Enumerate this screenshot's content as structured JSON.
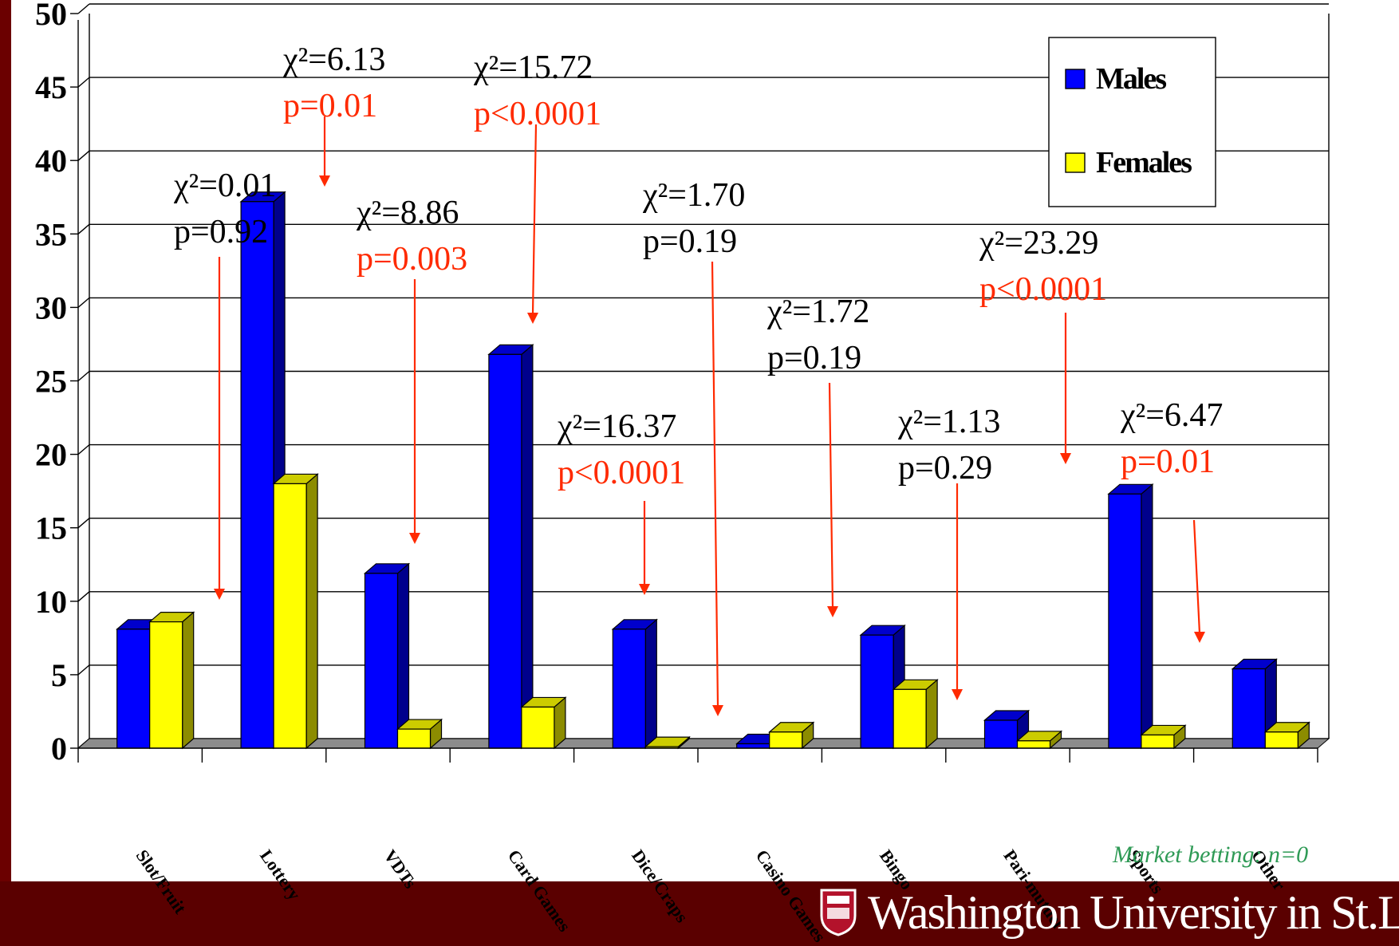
{
  "chart_data": {
    "type": "bar",
    "style": "3d-clustered",
    "categories": [
      "Slot/Fruit",
      "Lottery",
      "VDTs",
      "Card Games",
      "Dice/Craps",
      "Casino Games",
      "Bingo",
      "Pari-mutuel",
      "Sports",
      "Other"
    ],
    "series": [
      {
        "name": "Males",
        "color": "#0000ff",
        "values": [
          8.1,
          37.2,
          11.9,
          26.8,
          8.1,
          0.3,
          7.7,
          1.9,
          17.3,
          5.4
        ]
      },
      {
        "name": "Females",
        "color": "#ffff00",
        "values": [
          8.6,
          18.0,
          1.3,
          2.8,
          0.1,
          1.1,
          4.0,
          0.5,
          0.9,
          1.1
        ]
      }
    ],
    "ylim": [
      0,
      50
    ],
    "yticks": [
      "0",
      "5",
      "10",
      "15",
      "20",
      "25",
      "30",
      "35",
      "40",
      "45",
      "50"
    ],
    "grid": true,
    "legend_position": "top-right",
    "annotations": [
      {
        "chi": "χ²=0.01",
        "p": "p=0.92",
        "significant": false
      },
      {
        "chi": "χ²=6.13",
        "p": "p=0.01",
        "significant": true
      },
      {
        "chi": "χ²=8.86",
        "p": "p=0.003",
        "significant": true
      },
      {
        "chi": "χ²=15.72",
        "p": "p<0.0001",
        "significant": true
      },
      {
        "chi": "χ²=16.37",
        "p": "p<0.0001",
        "significant": true
      },
      {
        "chi": "χ²=1.70",
        "p": "p=0.19",
        "significant": false
      },
      {
        "chi": "χ²=1.72",
        "p": "p=0.19",
        "significant": false
      },
      {
        "chi": "χ²=1.13",
        "p": "p=0.29",
        "significant": false
      },
      {
        "chi": "χ²=23.29",
        "p": "p<0.0001",
        "significant": true
      },
      {
        "chi": "χ²=6.47",
        "p": "p=0.01",
        "significant": true
      }
    ],
    "note": "Market betting: n=0"
  },
  "footer": {
    "logo_text": "Washington University in St.Lo"
  },
  "colors": {
    "red_accent": "#ff2a00",
    "background_frame": "#5a0000",
    "note_green": "#2e9a55"
  }
}
